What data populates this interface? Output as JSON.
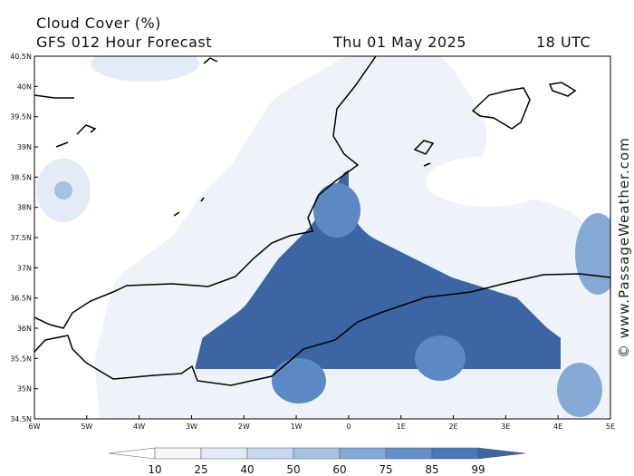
{
  "header": {
    "title": "Cloud Cover (%)",
    "subtitle": "GFS 012 Hour Forecast",
    "date": "Thu 01 May 2025",
    "time": "18 UTC"
  },
  "map": {
    "lat_labels": [
      "40.5N",
      "40N",
      "39.5N",
      "39N",
      "38.5N",
      "38N",
      "37.5N",
      "37N",
      "36.5N",
      "36N",
      "35.5N",
      "35N",
      "34.5N"
    ],
    "lon_labels": [
      "6W",
      "5W",
      "4W",
      "3W",
      "2W",
      "1W",
      "0",
      "1E",
      "2E",
      "3E",
      "4E",
      "5E"
    ]
  },
  "colorbar": {
    "labels": [
      10,
      25,
      40,
      50,
      60,
      75,
      85,
      99
    ]
  },
  "watermark": "© www.PassageWeather.com"
}
